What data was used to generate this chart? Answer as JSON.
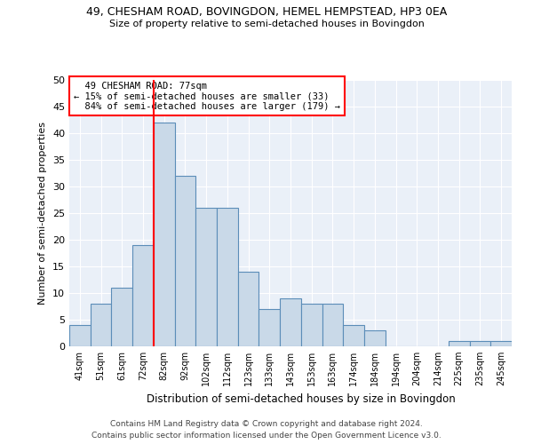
{
  "title1": "49, CHESHAM ROAD, BOVINGDON, HEMEL HEMPSTEAD, HP3 0EA",
  "title2": "Size of property relative to semi-detached houses in Bovingdon",
  "xlabel": "Distribution of semi-detached houses by size in Bovingdon",
  "ylabel": "Number of semi-detached properties",
  "bin_labels": [
    "41sqm",
    "51sqm",
    "61sqm",
    "72sqm",
    "82sqm",
    "92sqm",
    "102sqm",
    "112sqm",
    "123sqm",
    "133sqm",
    "143sqm",
    "153sqm",
    "163sqm",
    "174sqm",
    "184sqm",
    "194sqm",
    "204sqm",
    "214sqm",
    "225sqm",
    "235sqm",
    "245sqm"
  ],
  "bar_heights": [
    4,
    8,
    11,
    19,
    42,
    32,
    26,
    26,
    14,
    7,
    9,
    8,
    8,
    4,
    3,
    0,
    0,
    0,
    1,
    1,
    1
  ],
  "bar_color": "#c9d9e8",
  "bar_edge_color": "#5b8db8",
  "property_line_bin": 4,
  "property_line_label": "49 CHESHAM ROAD: 77sqm",
  "pct_smaller": "15%",
  "count_smaller": 33,
  "pct_larger": "84%",
  "count_larger": 179,
  "ylim": [
    0,
    50
  ],
  "yticks": [
    0,
    5,
    10,
    15,
    20,
    25,
    30,
    35,
    40,
    45,
    50
  ],
  "bg_color": "#eaf0f8",
  "footer": "Contains HM Land Registry data © Crown copyright and database right 2024.\nContains public sector information licensed under the Open Government Licence v3.0."
}
